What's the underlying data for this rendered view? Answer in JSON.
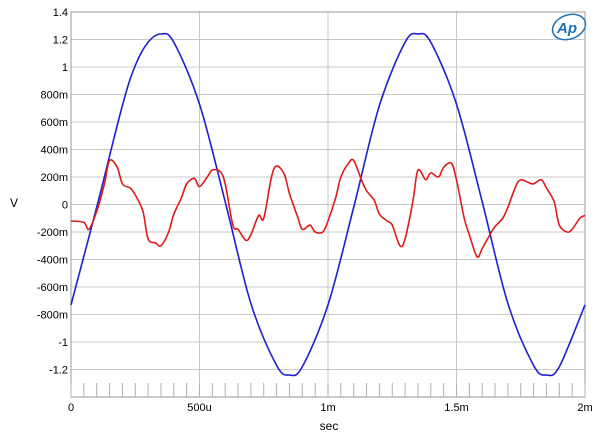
{
  "chart_data": {
    "type": "line",
    "title": "",
    "xlabel": "sec",
    "ylabel": "V",
    "xlim": [
      0,
      0.002
    ],
    "ylim": [
      -1.4,
      1.4
    ],
    "grid": true,
    "x_ticks": [
      {
        "value": 0,
        "label": "0"
      },
      {
        "value": 0.0005,
        "label": "500u"
      },
      {
        "value": 0.001,
        "label": "1m"
      },
      {
        "value": 0.0015,
        "label": "1.5m"
      },
      {
        "value": 0.002,
        "label": "2m"
      }
    ],
    "y_ticks": [
      {
        "value": 1.4,
        "label": "1.4"
      },
      {
        "value": 1.2,
        "label": "1.2"
      },
      {
        "value": 1.0,
        "label": "1"
      },
      {
        "value": 0.8,
        "label": "800m"
      },
      {
        "value": 0.6,
        "label": "600m"
      },
      {
        "value": 0.4,
        "label": "400m"
      },
      {
        "value": 0.2,
        "label": "200m"
      },
      {
        "value": 0.0,
        "label": "0"
      },
      {
        "value": -0.2,
        "label": "-200m"
      },
      {
        "value": -0.4,
        "label": "-400m"
      },
      {
        "value": -0.6,
        "label": "-600m"
      },
      {
        "value": -0.8,
        "label": "-800m"
      },
      {
        "value": -1.0,
        "label": "-1"
      },
      {
        "value": -1.2,
        "label": "-1.2"
      }
    ],
    "series": [
      {
        "color": "#1f1fd0",
        "x": [
          0,
          0.0001,
          0.0002,
          0.00025,
          0.0003,
          0.00035,
          0.0004,
          0.0005,
          0.0006,
          0.0007,
          0.0008,
          0.00085,
          0.0009,
          0.001,
          0.0011,
          0.0012,
          0.0013,
          0.00135,
          0.0014,
          0.0015,
          0.0016,
          0.0017,
          0.0018,
          0.00185,
          0.0019,
          0.002
        ],
        "y": [
          -0.73,
          -0.02,
          0.72,
          1.01,
          1.18,
          1.24,
          1.18,
          0.73,
          0.02,
          -0.72,
          -1.17,
          -1.24,
          -1.18,
          -0.73,
          -0.02,
          0.72,
          1.18,
          1.24,
          1.18,
          0.73,
          0.02,
          -0.72,
          -1.17,
          -1.24,
          -1.18,
          -0.73
        ]
      },
      {
        "color": "#e01a1a",
        "x": [
          0,
          5e-05,
          7e-05,
          0.0001,
          0.00013,
          0.00015,
          0.00018,
          0.0002,
          0.00023,
          0.00025,
          0.00028,
          0.0003,
          0.00033,
          0.00035,
          0.00038,
          0.0004,
          0.00043,
          0.00045,
          0.00048,
          0.0005,
          0.00053,
          0.00055,
          0.00058,
          0.0006,
          0.00063,
          0.00065,
          0.00068,
          0.0007,
          0.00073,
          0.00075,
          0.00078,
          0.0008,
          0.00083,
          0.00085,
          0.00088,
          0.0009,
          0.00093,
          0.00095,
          0.00098,
          0.001,
          0.00103,
          0.00105,
          0.00108,
          0.0011,
          0.00113,
          0.00115,
          0.00118,
          0.0012,
          0.00123,
          0.00125,
          0.00128,
          0.0013,
          0.00133,
          0.00135,
          0.00138,
          0.0014,
          0.00143,
          0.00145,
          0.00148,
          0.0015,
          0.00153,
          0.00155,
          0.00158,
          0.0016,
          0.00163,
          0.00165,
          0.00168,
          0.0017,
          0.00173,
          0.00175,
          0.00178,
          0.0018,
          0.00183,
          0.00185,
          0.00188,
          0.0019,
          0.00193,
          0.00195,
          0.00198,
          0.002
        ],
        "y": [
          -0.12,
          -0.13,
          -0.18,
          -0.05,
          0.15,
          0.32,
          0.27,
          0.15,
          0.12,
          0.07,
          -0.05,
          -0.25,
          -0.28,
          -0.3,
          -0.2,
          -0.07,
          0.05,
          0.15,
          0.19,
          0.13,
          0.2,
          0.25,
          0.24,
          0.15,
          -0.15,
          -0.18,
          -0.26,
          -0.22,
          -0.08,
          -0.1,
          0.2,
          0.28,
          0.22,
          0.08,
          -0.08,
          -0.18,
          -0.15,
          -0.2,
          -0.2,
          -0.12,
          0.05,
          0.2,
          0.3,
          0.32,
          0.18,
          0.1,
          0.03,
          -0.07,
          -0.12,
          -0.15,
          -0.3,
          -0.25,
          0.02,
          0.25,
          0.18,
          0.23,
          0.2,
          0.27,
          0.3,
          0.18,
          -0.1,
          -0.22,
          -0.38,
          -0.32,
          -0.22,
          -0.16,
          -0.1,
          -0.02,
          0.13,
          0.18,
          0.16,
          0.15,
          0.18,
          0.12,
          0.02,
          -0.15,
          -0.2,
          -0.18,
          -0.1,
          -0.08
        ]
      }
    ]
  }
}
